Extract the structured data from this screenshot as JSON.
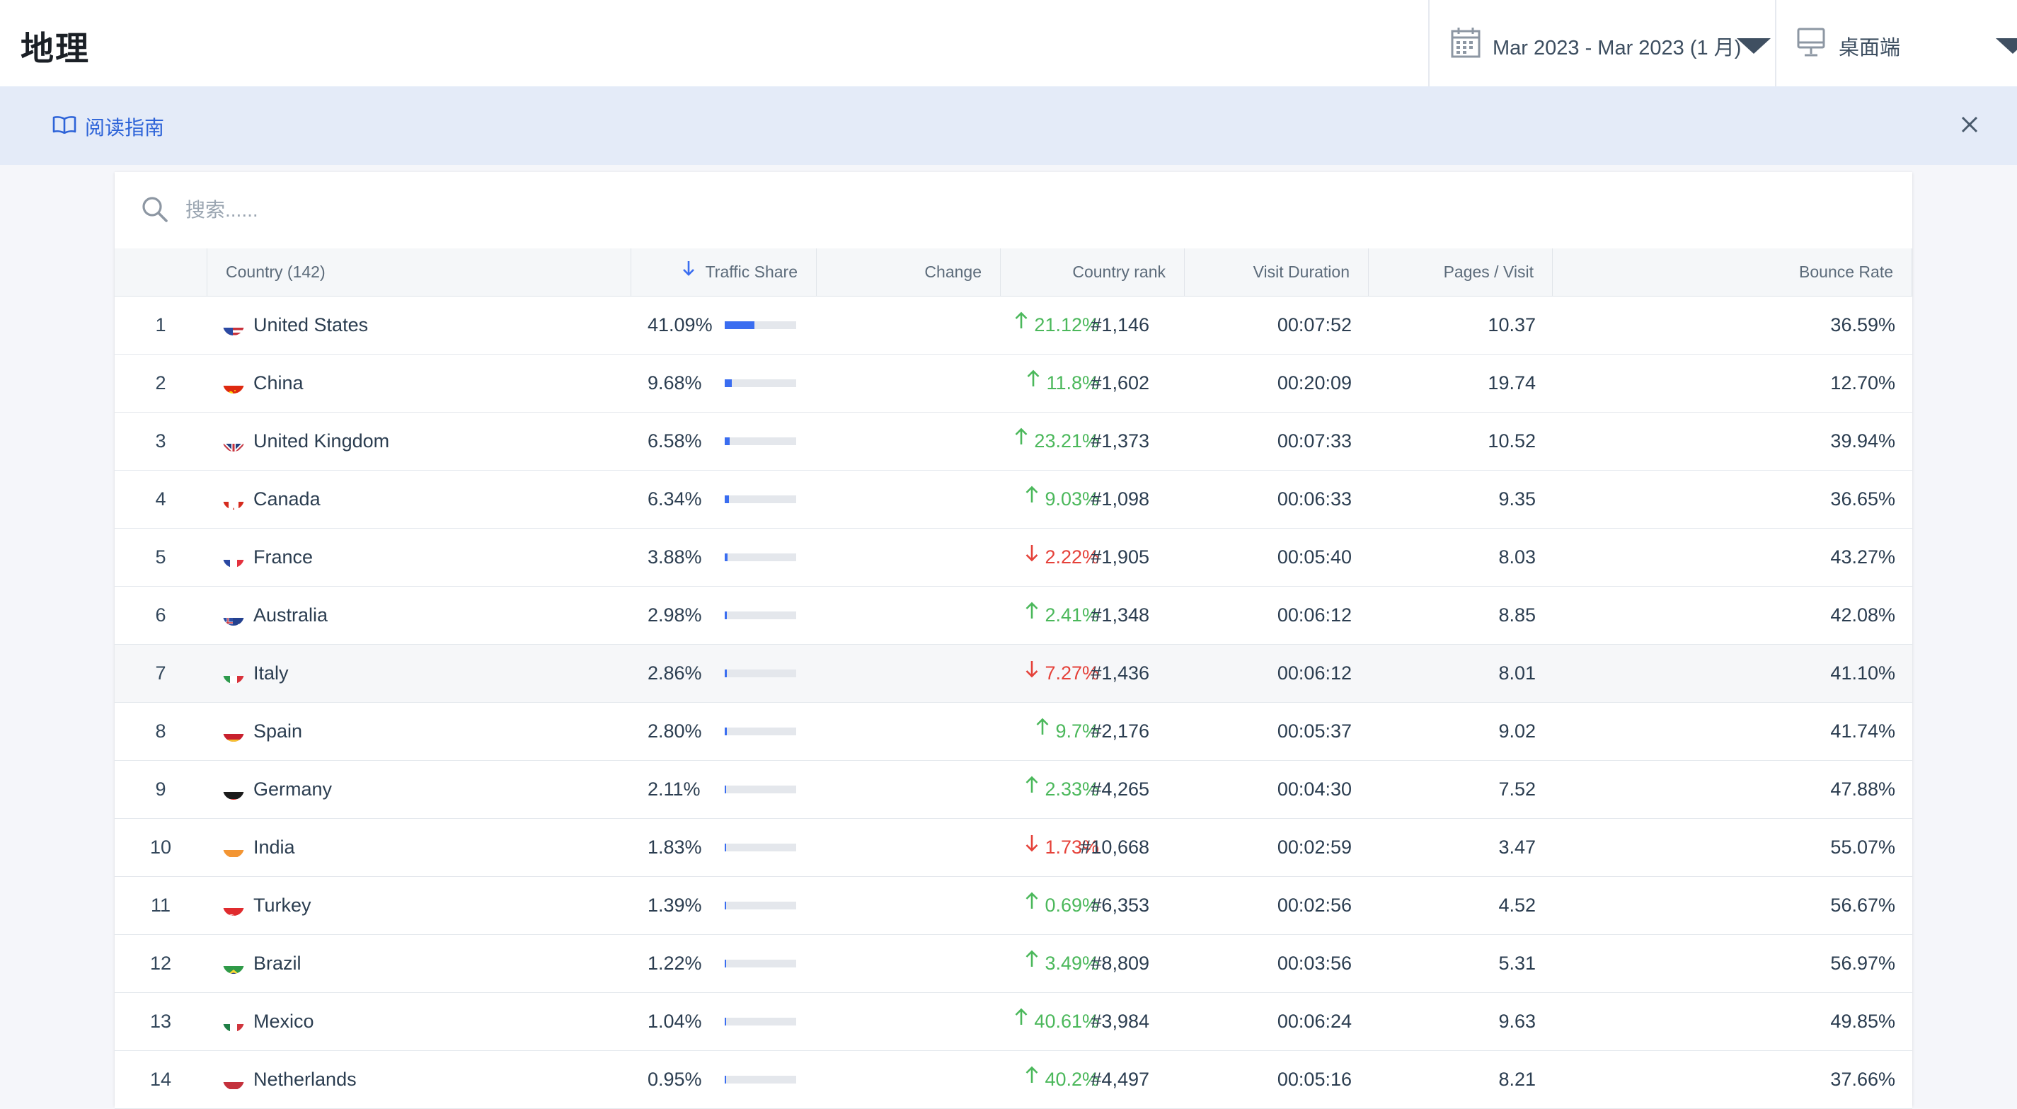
{
  "page": {
    "title": "地理"
  },
  "date_range": {
    "label": "Mar 2023 - Mar 2023 (1 月)"
  },
  "device": {
    "label": "桌面端"
  },
  "guide": {
    "label": "阅读指南"
  },
  "search": {
    "placeholder": "搜索......"
  },
  "colors": {
    "accent": "#3a6df0",
    "up": "#4bb85b",
    "down": "#e5423a"
  },
  "table": {
    "columns": {
      "country": "Country (142)",
      "traffic_share": "Traffic Share",
      "change": "Change",
      "country_rank": "Country rank",
      "visit_duration": "Visit Duration",
      "pages_visit": "Pages / Visit",
      "bounce_rate": "Bounce Rate"
    },
    "rows": [
      {
        "idx": "1",
        "country": "United States",
        "flag": "us",
        "share": "41.09%",
        "share_frac": 0.4109,
        "change": "21.12%",
        "dir": "up",
        "rank": "#1,146",
        "duration": "00:07:52",
        "pages": "10.37",
        "bounce": "36.59%"
      },
      {
        "idx": "2",
        "country": "China",
        "flag": "cn",
        "share": "9.68%",
        "share_frac": 0.0968,
        "change": "11.8%",
        "dir": "up",
        "rank": "#1,602",
        "duration": "00:20:09",
        "pages": "19.74",
        "bounce": "12.70%"
      },
      {
        "idx": "3",
        "country": "United Kingdom",
        "flag": "gb",
        "share": "6.58%",
        "share_frac": 0.0658,
        "change": "23.21%",
        "dir": "up",
        "rank": "#1,373",
        "duration": "00:07:33",
        "pages": "10.52",
        "bounce": "39.94%"
      },
      {
        "idx": "4",
        "country": "Canada",
        "flag": "ca",
        "share": "6.34%",
        "share_frac": 0.0634,
        "change": "9.03%",
        "dir": "up",
        "rank": "#1,098",
        "duration": "00:06:33",
        "pages": "9.35",
        "bounce": "36.65%"
      },
      {
        "idx": "5",
        "country": "France",
        "flag": "fr",
        "share": "3.88%",
        "share_frac": 0.0388,
        "change": "2.22%",
        "dir": "down",
        "rank": "#1,905",
        "duration": "00:05:40",
        "pages": "8.03",
        "bounce": "43.27%"
      },
      {
        "idx": "6",
        "country": "Australia",
        "flag": "au",
        "share": "2.98%",
        "share_frac": 0.0298,
        "change": "2.41%",
        "dir": "up",
        "rank": "#1,348",
        "duration": "00:06:12",
        "pages": "8.85",
        "bounce": "42.08%"
      },
      {
        "idx": "7",
        "country": "Italy",
        "flag": "it",
        "share": "2.86%",
        "share_frac": 0.0286,
        "change": "7.27%",
        "dir": "down",
        "rank": "#1,436",
        "duration": "00:06:12",
        "pages": "8.01",
        "bounce": "41.10%",
        "highlighted": true
      },
      {
        "idx": "8",
        "country": "Spain",
        "flag": "es",
        "share": "2.80%",
        "share_frac": 0.028,
        "change": "9.7%",
        "dir": "up",
        "rank": "#2,176",
        "duration": "00:05:37",
        "pages": "9.02",
        "bounce": "41.74%"
      },
      {
        "idx": "9",
        "country": "Germany",
        "flag": "de",
        "share": "2.11%",
        "share_frac": 0.0211,
        "change": "2.33%",
        "dir": "up",
        "rank": "#4,265",
        "duration": "00:04:30",
        "pages": "7.52",
        "bounce": "47.88%"
      },
      {
        "idx": "10",
        "country": "India",
        "flag": "in",
        "share": "1.83%",
        "share_frac": 0.0183,
        "change": "1.73%",
        "dir": "down",
        "rank": "#10,668",
        "duration": "00:02:59",
        "pages": "3.47",
        "bounce": "55.07%"
      },
      {
        "idx": "11",
        "country": "Turkey",
        "flag": "tr",
        "share": "1.39%",
        "share_frac": 0.0139,
        "change": "0.69%",
        "dir": "up",
        "rank": "#6,353",
        "duration": "00:02:56",
        "pages": "4.52",
        "bounce": "56.67%"
      },
      {
        "idx": "12",
        "country": "Brazil",
        "flag": "br",
        "share": "1.22%",
        "share_frac": 0.0122,
        "change": "3.49%",
        "dir": "up",
        "rank": "#8,809",
        "duration": "00:03:56",
        "pages": "5.31",
        "bounce": "56.97%"
      },
      {
        "idx": "13",
        "country": "Mexico",
        "flag": "mx",
        "share": "1.04%",
        "share_frac": 0.0104,
        "change": "40.61%",
        "dir": "up",
        "rank": "#3,984",
        "duration": "00:06:24",
        "pages": "9.63",
        "bounce": "49.85%"
      },
      {
        "idx": "14",
        "country": "Netherlands",
        "flag": "nl",
        "share": "0.95%",
        "share_frac": 0.0095,
        "change": "40.2%",
        "dir": "up",
        "rank": "#4,497",
        "duration": "00:05:16",
        "pages": "8.21",
        "bounce": "37.66%"
      }
    ]
  }
}
